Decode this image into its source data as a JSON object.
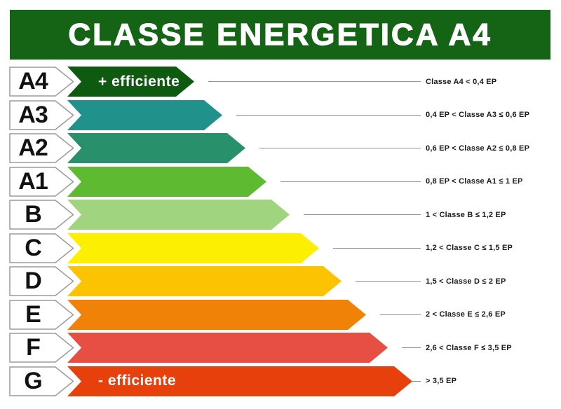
{
  "header": {
    "title": "CLASSE ENERGETICA A4"
  },
  "colors": {
    "header_bg": "#156315",
    "tag_fill": "#ffffff",
    "tag_border": "#9b9b9b",
    "connector": "#8f8f8f",
    "label_text": "#1a1a1a",
    "tag_letter": "#111111",
    "annotation_text": "#ffffff"
  },
  "rows": [
    {
      "class": "A4",
      "color": "#0e5a11",
      "bar_length": 181,
      "annotation": "+ efficiente",
      "label": "Classe A4 < 0,4 EP"
    },
    {
      "class": "A3",
      "color": "#21918b",
      "bar_length": 221,
      "label": "0,4 EP < Classe A3 ≤ 0,6 EP"
    },
    {
      "class": "A2",
      "color": "#28916b",
      "bar_length": 254,
      "label": "0,6 EP < Classe A2 ≤ 0,8 EP"
    },
    {
      "class": "A1",
      "color": "#5eba30",
      "bar_length": 284,
      "label": "0,8 EP < Classe A1 ≤ 1 EP"
    },
    {
      "class": "B",
      "color": "#a0d47f",
      "bar_length": 317,
      "label": "1 < Classe B ≤ 1,2 EP"
    },
    {
      "class": "C",
      "color": "#fcf000",
      "bar_length": 359,
      "label": "1,2 < Classe C ≤ 1,5 EP"
    },
    {
      "class": "D",
      "color": "#fcc303",
      "bar_length": 391,
      "label": "1,5 < Classe D ≤ 2 EP"
    },
    {
      "class": "E",
      "color": "#f08208",
      "bar_length": 426,
      "label": "2 < Classe E ≤ 2,6 EP"
    },
    {
      "class": "F",
      "color": "#e64f42",
      "bar_length": 457,
      "label": "2,6 < Classe F ≤ 3,5 EP"
    },
    {
      "class": "G",
      "color": "#e8400c",
      "bar_length": 492,
      "annotation": "- efficiente",
      "label": "> 3,5 EP"
    }
  ],
  "chart_data": {
    "type": "bar",
    "orientation": "horizontal",
    "title": "CLASSE ENERGETICA A4",
    "categories": [
      "A4",
      "A3",
      "A2",
      "A1",
      "B",
      "C",
      "D",
      "E",
      "F",
      "G"
    ],
    "values": [
      181,
      221,
      254,
      284,
      317,
      359,
      391,
      426,
      457,
      492
    ],
    "values_note": "relative arrow lengths in px; shorter bar = more efficient class",
    "range_labels": [
      "Classe A4 < 0,4 EP",
      "0,4 EP < Classe A3 ≤ 0,6 EP",
      "0,6 EP < Classe A2 ≤ 0,8 EP",
      "0,8 EP < Classe A1 ≤ 1 EP",
      "1 < Classe B ≤ 1,2 EP",
      "1,2 < Classe C ≤ 1,5 EP",
      "1,5 < Classe D ≤ 2 EP",
      "2 < Classe E ≤ 2,6 EP",
      "2,6 < Classe F ≤ 3,5 EP",
      "> 3,5 EP"
    ],
    "bar_colors": [
      "#0e5a11",
      "#21918b",
      "#28916b",
      "#5eba30",
      "#a0d47f",
      "#fcf000",
      "#fcc303",
      "#f08208",
      "#e64f42",
      "#e8400c"
    ],
    "annotations": [
      {
        "category": "A4",
        "text": "+ efficiente"
      },
      {
        "category": "G",
        "text": "- efficiente"
      }
    ],
    "legend": "none",
    "grid": false
  }
}
